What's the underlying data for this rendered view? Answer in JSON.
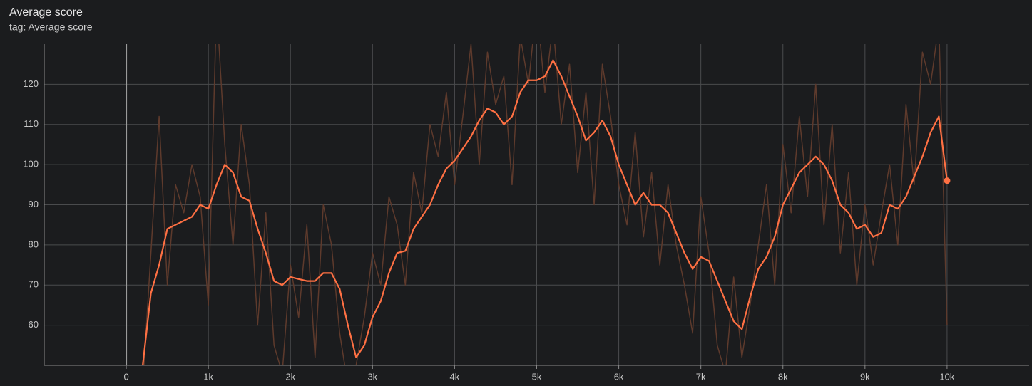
{
  "chart_data": {
    "type": "line",
    "title": "Average score",
    "subtitle": "tag: Average score",
    "x": [
      200,
      300,
      400,
      500,
      600,
      700,
      800,
      900,
      1000,
      1100,
      1200,
      1300,
      1400,
      1500,
      1600,
      1700,
      1800,
      1900,
      2000,
      2100,
      2200,
      2300,
      2400,
      2500,
      2600,
      2700,
      2800,
      2900,
      3000,
      3100,
      3200,
      3300,
      3400,
      3500,
      3600,
      3700,
      3800,
      3900,
      4000,
      4100,
      4200,
      4300,
      4400,
      4500,
      4600,
      4700,
      4800,
      4900,
      5000,
      5100,
      5200,
      5300,
      5400,
      5500,
      5600,
      5700,
      5800,
      5900,
      6000,
      6100,
      6200,
      6300,
      6400,
      6500,
      6600,
      6700,
      6800,
      6900,
      7000,
      7100,
      7200,
      7300,
      7400,
      7500,
      7600,
      7700,
      7800,
      7900,
      8000,
      8100,
      8200,
      8300,
      8400,
      8500,
      8600,
      8700,
      8800,
      8900,
      9000,
      9100,
      9200,
      9300,
      9400,
      9500,
      9600,
      9700,
      9800,
      9900,
      10000
    ],
    "series": [
      {
        "color": "#5e3a2c",
        "values": [
          45,
          78,
          112,
          70,
          95,
          88,
          100,
          92,
          65,
          140,
          105,
          80,
          110,
          95,
          60,
          88,
          55,
          48,
          75,
          62,
          85,
          52,
          90,
          80,
          58,
          45,
          50,
          62,
          78,
          70,
          92,
          85,
          70,
          98,
          88,
          110,
          102,
          118,
          95,
          112,
          130,
          100,
          128,
          115,
          122,
          95,
          132,
          120,
          140,
          118,
          135,
          110,
          125,
          98,
          118,
          90,
          125,
          112,
          95,
          85,
          108,
          82,
          98,
          75,
          95,
          80,
          70,
          58,
          92,
          78,
          55,
          48,
          72,
          52,
          65,
          80,
          95,
          70,
          105,
          88,
          112,
          92,
          120,
          85,
          110,
          78,
          98,
          70,
          90,
          75,
          88,
          100,
          80,
          115,
          95,
          128,
          120,
          135,
          60
        ]
      },
      {
        "color": "#ff7043",
        "values": [
          50,
          68,
          75,
          84,
          85,
          86,
          87,
          90,
          89,
          95,
          100,
          98,
          92,
          91,
          84,
          78,
          71,
          70,
          72,
          71.5,
          71,
          71,
          73,
          73,
          69,
          60,
          52,
          55,
          62,
          66,
          73,
          78,
          78.5,
          84,
          87,
          90,
          95,
          99,
          101,
          104,
          107,
          111,
          114,
          113,
          110,
          112,
          118,
          121,
          121,
          122,
          126,
          122,
          117,
          112,
          106,
          108,
          111,
          107,
          100,
          95,
          90,
          93,
          90,
          90,
          88,
          83,
          78,
          74,
          77,
          76,
          71,
          66,
          61,
          59,
          67,
          74,
          77,
          82,
          90,
          94,
          98,
          100,
          102,
          100,
          96,
          90,
          88,
          84,
          85,
          82,
          83,
          90,
          89,
          92,
          97,
          102,
          108,
          112,
          96
        ]
      }
    ],
    "xlim": [
      -1000,
      11000
    ],
    "ylim": [
      50,
      130
    ],
    "xticks": [
      0,
      {
        "value": 1000,
        "label": "1k"
      },
      {
        "value": 2000,
        "label": "2k"
      },
      {
        "value": 3000,
        "label": "3k"
      },
      {
        "value": 4000,
        "label": "4k"
      },
      {
        "value": 5000,
        "label": "5k"
      },
      {
        "value": 6000,
        "label": "6k"
      },
      {
        "value": 7000,
        "label": "7k"
      },
      {
        "value": 8000,
        "label": "8k"
      },
      {
        "value": 9000,
        "label": "9k"
      },
      {
        "value": 10000,
        "label": "10k"
      }
    ],
    "yticks": [
      60,
      70,
      80,
      90,
      100,
      110,
      120
    ],
    "grid": true
  }
}
